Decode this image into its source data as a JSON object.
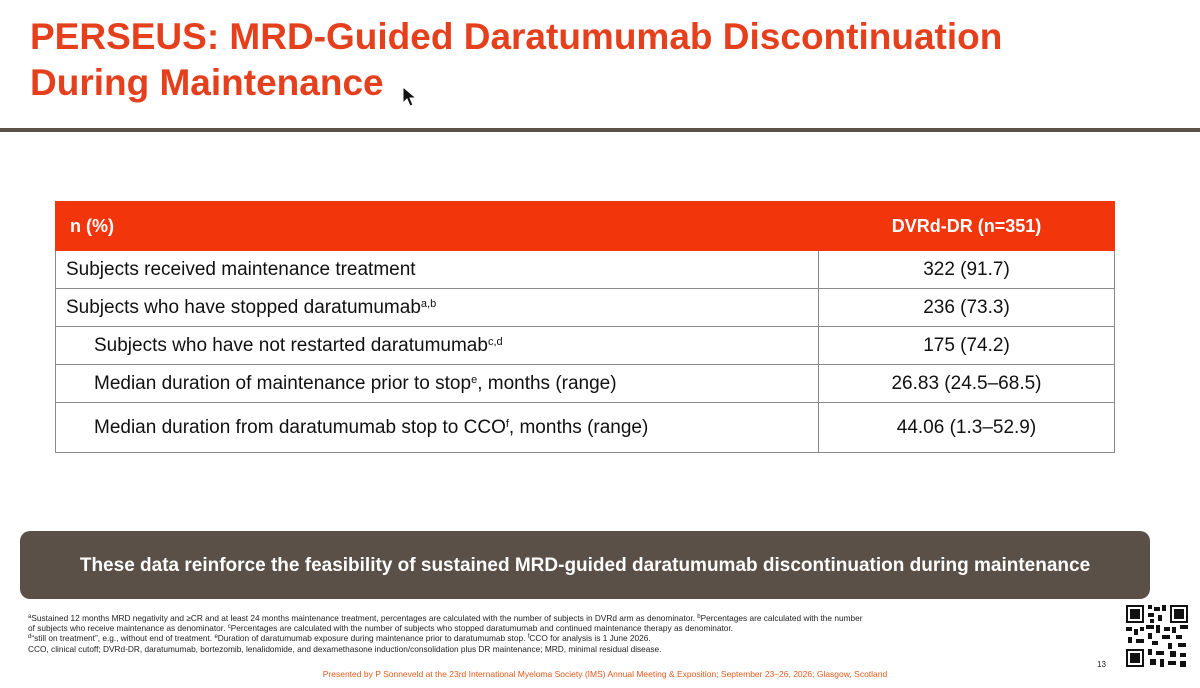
{
  "title": {
    "line1": "PERSEUS: MRD-Guided Daratumumab Discontinuation",
    "line2": "During Maintenance"
  },
  "table": {
    "header": {
      "col1": "n (%)",
      "col2": "DVRd-DR (n=351)"
    },
    "rows": [
      {
        "label": "Subjects received maintenance treatment",
        "sup": "",
        "suffix": "",
        "value": "322 (91.7)"
      },
      {
        "label": "Subjects who have stopped daratumumab",
        "sup": "a,b",
        "suffix": "",
        "value": "236 (73.3)"
      },
      {
        "label": "Subjects who have not restarted daratumumab",
        "sup": "c,d",
        "suffix": "",
        "value": "175 (74.2)"
      },
      {
        "label": "Median duration of maintenance prior to stop",
        "sup": "e",
        "suffix": ", months (range)",
        "value": "26.83 (24.5–68.5)"
      },
      {
        "label": "Median duration from daratumumab stop to CCO",
        "sup": "f",
        "suffix": ", months (range)",
        "value": "44.06 (1.3–52.9)"
      }
    ]
  },
  "callout": "These data reinforce the feasibility of sustained MRD-guided daratumumab discontinuation during maintenance",
  "footnotes": {
    "line1": {
      "sup_a": "a",
      "text_a": "Sustained 12 months MRD negativity and ≥CR and at least 24 months maintenance treatment, percentages are calculated with the number of subjects in DVRd arm as denominator. ",
      "sup_b": "b",
      "text_b": "Percentages are calculated with the number"
    },
    "line2": {
      "text_a": "of subjects who receive maintenance as denominator. ",
      "sup_c": "c",
      "text_b": "Percentages are calculated with the number of subjects who stopped daratumumab and continued maintenance therapy as denominator."
    },
    "line3": {
      "sup_d": "d",
      "text_a": "“still on treatment”, e.g., without end of treatment. ",
      "sup_e": "e",
      "text_b": "Duration of daratumumab exposure during maintenance prior to daratumumab stop. ",
      "sup_f": "f",
      "text_c": "CCO for analysis is 1 June 2026."
    },
    "line4": "CCO, clinical cutoff; DVRd-DR, daratumumab, bortezomib, lenalidomide, and dexamethasone induction/consolidation plus DR maintenance; MRD, minimal residual disease."
  },
  "presenter": "Presented by P Sonneveld at the 23rd International Myeloma Society (IMS) Annual Meeting & Exposition; September 23–26, 2026; Glasgow, Scotland",
  "page_number": "13",
  "colors": {
    "title": "#e5401d",
    "table_header": "#f2350b",
    "callout_bg": "#5a5048",
    "divider": "#5b5247",
    "presenter": "#e05a1a"
  },
  "icons": {
    "cursor": "mouse-cursor-icon",
    "qr": "qr-code-icon"
  }
}
